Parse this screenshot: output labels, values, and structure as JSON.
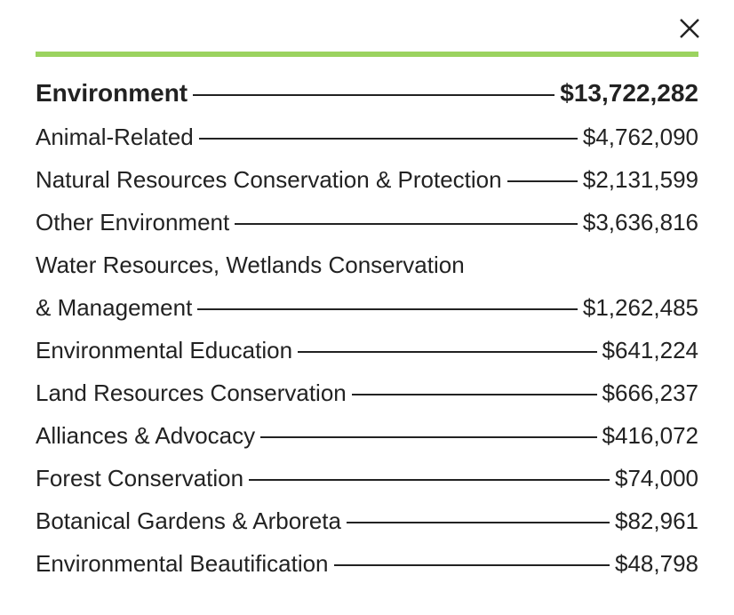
{
  "close_label": "Close",
  "accent_color": "#9bd35f",
  "category": {
    "name": "Environment",
    "amount": "$13,722,282"
  },
  "items": [
    {
      "name": "Animal-Related",
      "amount": "$4,762,090"
    },
    {
      "name": "Natural Resources Conservation & Protection",
      "amount": "$2,131,599"
    },
    {
      "name": "Other Environment",
      "amount": "$3,636,816"
    },
    {
      "name_line1": "Water Resources, Wetlands Conservation",
      "name_line2": "& Management",
      "amount": "$1,262,485"
    },
    {
      "name": "Environmental Education",
      "amount": "$641,224"
    },
    {
      "name": "Land Resources Conservation",
      "amount": "$666,237"
    },
    {
      "name": "Alliances & Advocacy",
      "amount": "$416,072"
    },
    {
      "name": "Forest Conservation",
      "amount": "$74,000"
    },
    {
      "name": "Botanical Gardens & Arboreta",
      "amount": "$82,961"
    },
    {
      "name": "Environmental Beautification",
      "amount": "$48,798"
    }
  ]
}
